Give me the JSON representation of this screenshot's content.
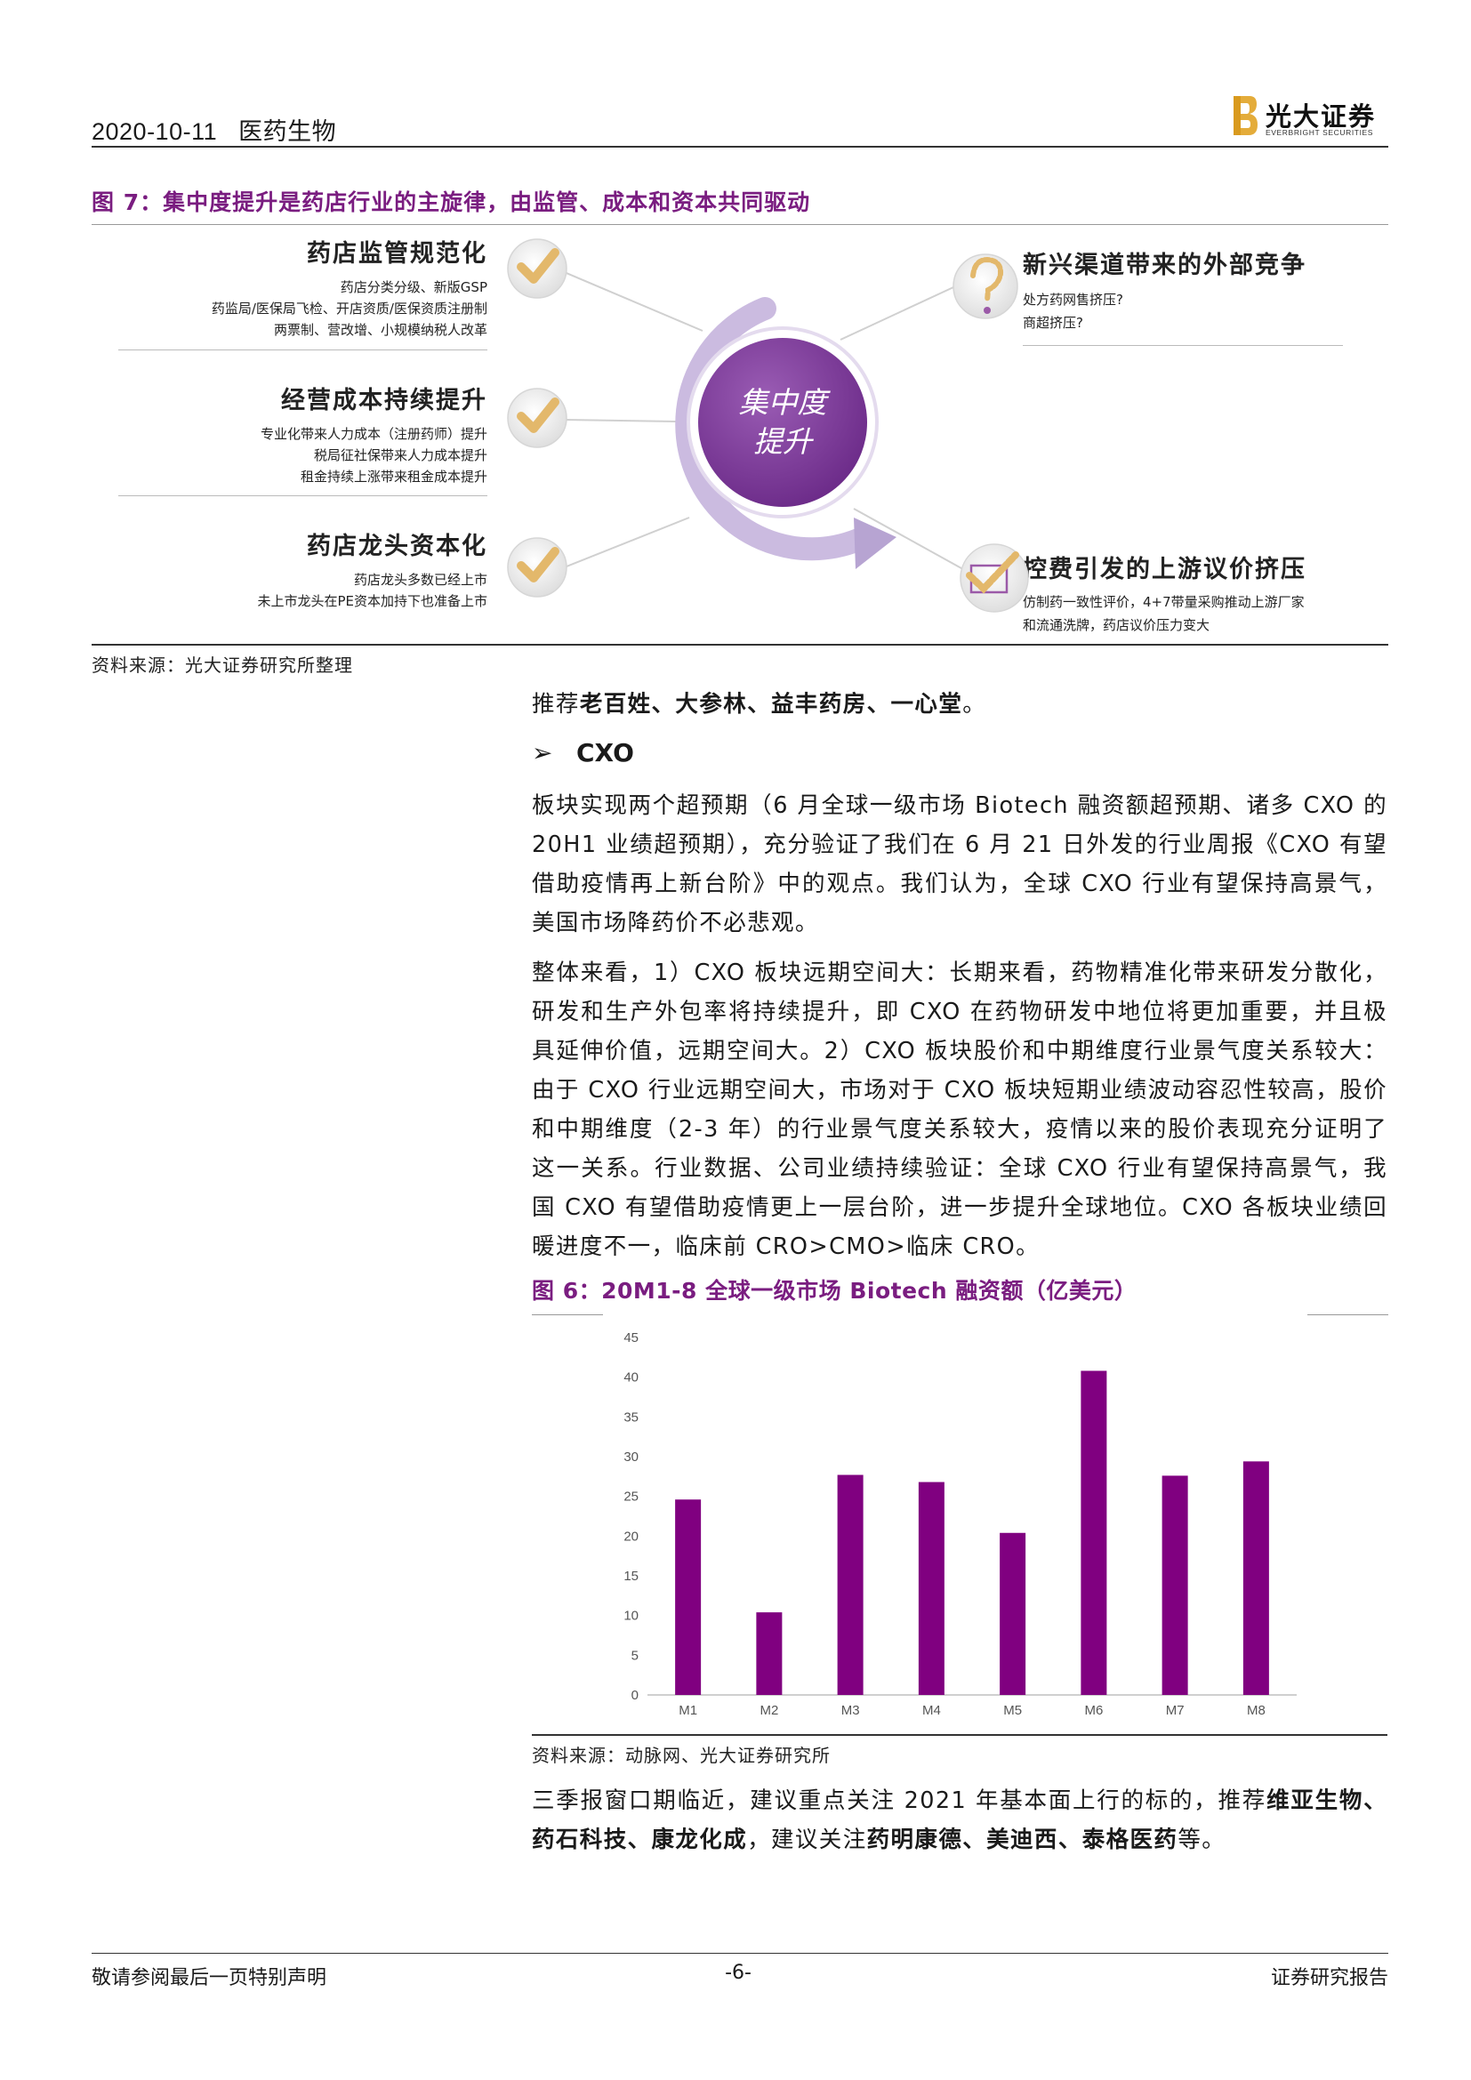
{
  "header": {
    "date": "2020-10-11",
    "sector": "医药生物",
    "logo_name": "光大证券",
    "logo_en": "EVERBRIGHT SECURITIES"
  },
  "figure7": {
    "title": "图 7：集中度提升是药店行业的主旋律，由监管、成本和资本共同驱动",
    "center": [
      "集中度",
      "提升"
    ],
    "left_groups": [
      {
        "head": "药店监管规范化",
        "lines": [
          "药店分类分级、新版GSP",
          "药监局/医保局飞检、开店资质/医保资质注册制",
          "两票制、营改增、小规模纳税人改革"
        ]
      },
      {
        "head": "经营成本持续提升",
        "lines": [
          "专业化带来人力成本（注册药师）提升",
          "税局征社保带来人力成本提升",
          "租金持续上涨带来租金成本提升"
        ]
      },
      {
        "head": "药店龙头资本化",
        "lines": [
          "药店龙头多数已经上市",
          "未上市龙头在PE资本加持下也准备上市"
        ]
      }
    ],
    "right_groups": [
      {
        "head": "新兴渠道带来的外部竞争",
        "lines": [
          "处方药网售挤压?",
          "商超挤压?"
        ]
      },
      {
        "head": "控费引发的上游议价挤压",
        "lines": [
          "仿制药一致性评价，4+7带量采购推动上游厂家",
          "和流通洗牌，药店议价压力变大"
        ]
      }
    ],
    "source": "资料来源：光大证券研究所整理"
  },
  "body": {
    "recommend_prefix": "推荐",
    "recommend_names": "老百姓、大参林、益丰药房、一心堂",
    "recommend_suffix": "。",
    "cxo_bullet": "➢",
    "cxo_heading": "CXO",
    "p1": "板块实现两个超预期（6 月全球一级市场 Biotech 融资额超预期、诸多 CXO 的 20H1 业绩超预期），充分验证了我们在 6 月 21 日外发的行业周报《CXO 有望借助疫情再上新台阶》中的观点。我们认为，全球 CXO 行业有望保持高景气，美国市场降药价不必悲观。",
    "p2": "整体来看，1）CXO 板块远期空间大：长期来看，药物精准化带来研发分散化，研发和生产外包率将持续提升，即 CXO 在药物研发中地位将更加重要，并且极具延伸价值，远期空间大。2）CXO 板块股价和中期维度行业景气度关系较大：由于 CXO 行业远期空间大，市场对于 CXO 板块短期业绩波动容忍性较高，股价和中期维度（2-3 年）的行业景气度关系较大，疫情以来的股价表现充分证明了这一关系。行业数据、公司业绩持续验证：全球 CXO 行业有望保持高景气，我国 CXO 有望借助疫情更上一层台阶，进一步提升全球地位。CXO 各板块业绩回暖进度不一，临床前 CRO>CMO>临床 CRO。",
    "p3_a": "三季报窗口期临近，建议重点关注 2021 年基本面上行的标的，推荐",
    "p3_b": "维亚生物、药石科技、康龙化成",
    "p3_c": "，建议关注",
    "p3_d": "药明康德、美迪西、泰格医药",
    "p3_e": "等。"
  },
  "figure6": {
    "title": "图 6：20M1-8 全球一级市场 Biotech 融资额（亿美元）",
    "source": "资料来源：动脉网、光大证券研究所"
  },
  "chart_data": {
    "type": "bar",
    "title": "20M1-8 全球一级市场 Biotech 融资额（亿美元）",
    "categories": [
      "M1",
      "M2",
      "M3",
      "M4",
      "M5",
      "M6",
      "M7",
      "M8"
    ],
    "values": [
      24.6,
      10.4,
      27.7,
      26.8,
      20.4,
      40.8,
      27.6,
      29.4
    ],
    "ylim": [
      0,
      45
    ],
    "yticks": [
      0,
      5,
      10,
      15,
      20,
      25,
      30,
      35,
      40,
      45
    ],
    "xlabel": "",
    "ylabel": "",
    "bar_color": "#800080"
  },
  "footer": {
    "left": "敬请参阅最后一页特别声明",
    "page": "-6-",
    "right": "证券研究报告"
  },
  "colors": {
    "accent_purple": "#7a1d80",
    "circle_purple": "#7b3a96",
    "arc_lavender": "#c9b8de",
    "check_gold": "#e3b86b"
  }
}
